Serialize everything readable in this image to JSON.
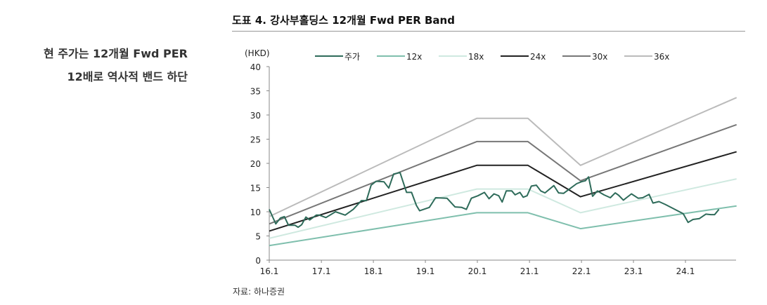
{
  "side_note": {
    "line1": "현 주가는 12개월 Fwd PER",
    "line2": "12배로 역사적 밴드 하단"
  },
  "source": "자료: 하나증권",
  "chart_data": {
    "type": "line",
    "title": "도표 4. 강사부홀딩스 12개월 Fwd PER Band",
    "ylabel": "(HKD)",
    "ylim": [
      0,
      40
    ],
    "yticks": [
      "0",
      "5",
      "10",
      "15",
      "20",
      "25",
      "30",
      "35",
      "40"
    ],
    "xticks": [
      {
        "label": "16.1",
        "date": "2016-01-01"
      },
      {
        "label": "17.1",
        "date": "2017-01-01"
      },
      {
        "label": "18.1",
        "date": "2018-01-01"
      },
      {
        "label": "19.1",
        "date": "2019-01-01"
      },
      {
        "label": "20.1",
        "date": "2020-01-01"
      },
      {
        "label": "21.1",
        "date": "2021-01-01"
      },
      {
        "label": "22.1",
        "date": "2022-01-01"
      },
      {
        "label": "23.1",
        "date": "2023-01-01"
      },
      {
        "label": "24.1",
        "date": "2024-01-01"
      }
    ],
    "legend": "top",
    "grid": false,
    "series": [
      {
        "name": "주가",
        "color": "#2e6b5a",
        "width": 2,
        "points": [
          [
            "2016-01-01",
            10.5
          ],
          [
            "2016-02-16",
            7.5
          ],
          [
            "2016-03-19",
            8.7
          ],
          [
            "2016-04-16",
            9.0
          ],
          [
            "2016-05-15",
            7.2
          ],
          [
            "2016-06-30",
            7.2
          ],
          [
            "2016-07-22",
            6.8
          ],
          [
            "2016-08-15",
            7.3
          ],
          [
            "2016-09-14",
            8.9
          ],
          [
            "2016-10-11",
            8.3
          ],
          [
            "2016-11-26",
            9.3
          ],
          [
            "2016-12-18",
            9.3
          ],
          [
            "2017-02-02",
            8.8
          ],
          [
            "2017-04-10",
            10.0
          ],
          [
            "2017-06-17",
            9.3
          ],
          [
            "2017-08-13",
            10.5
          ],
          [
            "2017-10-09",
            12.3
          ],
          [
            "2017-11-13",
            12.3
          ],
          [
            "2017-12-16",
            15.5
          ],
          [
            "2018-01-20",
            16.3
          ],
          [
            "2018-03-16",
            16.2
          ],
          [
            "2018-04-19",
            14.9
          ],
          [
            "2018-05-23",
            17.8
          ],
          [
            "2018-07-07",
            18.1
          ],
          [
            "2018-08-22",
            14.0
          ],
          [
            "2018-09-26",
            14.0
          ],
          [
            "2018-10-30",
            11.3
          ],
          [
            "2018-11-22",
            10.2
          ],
          [
            "2019-01-29",
            10.9
          ],
          [
            "2019-03-14",
            12.9
          ],
          [
            "2019-06-02",
            12.8
          ],
          [
            "2019-07-28",
            11.0
          ],
          [
            "2019-09-13",
            10.9
          ],
          [
            "2019-10-16",
            10.5
          ],
          [
            "2019-11-20",
            12.8
          ],
          [
            "2020-01-05",
            13.3
          ],
          [
            "2020-02-20",
            14.0
          ],
          [
            "2020-03-23",
            12.7
          ],
          [
            "2020-04-27",
            13.7
          ],
          [
            "2020-05-30",
            13.3
          ],
          [
            "2020-06-23",
            12.0
          ],
          [
            "2020-07-22",
            14.3
          ],
          [
            "2020-08-30",
            14.3
          ],
          [
            "2020-09-22",
            13.5
          ],
          [
            "2020-10-26",
            14.0
          ],
          [
            "2020-11-18",
            13.0
          ],
          [
            "2020-12-15",
            13.3
          ],
          [
            "2021-01-14",
            15.3
          ],
          [
            "2021-02-18",
            15.5
          ],
          [
            "2021-03-21",
            14.3
          ],
          [
            "2021-04-20",
            13.9
          ],
          [
            "2021-06-21",
            15.4
          ],
          [
            "2021-07-24",
            13.9
          ],
          [
            "2021-08-28",
            13.8
          ],
          [
            "2021-10-13",
            14.8
          ],
          [
            "2021-11-28",
            15.8
          ],
          [
            "2022-01-01",
            16.2
          ],
          [
            "2022-01-28",
            16.4
          ],
          [
            "2022-02-20",
            17.2
          ],
          [
            "2022-03-20",
            13.2
          ],
          [
            "2022-04-23",
            14.3
          ],
          [
            "2022-06-08",
            13.5
          ],
          [
            "2022-07-23",
            12.9
          ],
          [
            "2022-08-26",
            13.9
          ],
          [
            "2022-09-19",
            13.4
          ],
          [
            "2022-10-22",
            12.4
          ],
          [
            "2022-12-18",
            13.7
          ],
          [
            "2023-02-03",
            12.8
          ],
          [
            "2023-03-07",
            12.9
          ],
          [
            "2023-04-21",
            13.6
          ],
          [
            "2023-05-18",
            11.8
          ],
          [
            "2023-06-29",
            12.1
          ],
          [
            "2023-08-13",
            11.5
          ],
          [
            "2023-12-16",
            9.6
          ],
          [
            "2024-01-20",
            7.8
          ],
          [
            "2024-02-23",
            8.4
          ],
          [
            "2024-04-08",
            8.6
          ],
          [
            "2024-05-23",
            9.5
          ],
          [
            "2024-06-27",
            9.4
          ],
          [
            "2024-07-24",
            9.4
          ],
          [
            "2024-08-23",
            10.5
          ]
        ]
      },
      {
        "name": "12x",
        "color": "#7fbfad",
        "width": 2,
        "points": [
          [
            "2016-01-01",
            3.0
          ],
          [
            "2019-12-28",
            9.8
          ],
          [
            "2020-12-21",
            9.8
          ],
          [
            "2021-12-25",
            6.5
          ],
          [
            "2024-12-25",
            11.2
          ]
        ]
      },
      {
        "name": "18x",
        "color": "#cfe9e0",
        "width": 2,
        "points": [
          [
            "2016-01-01",
            4.5
          ],
          [
            "2019-12-28",
            14.7
          ],
          [
            "2020-12-21",
            14.7
          ],
          [
            "2021-12-25",
            9.8
          ],
          [
            "2024-12-25",
            16.8
          ]
        ]
      },
      {
        "name": "24x",
        "color": "#222222",
        "width": 2,
        "points": [
          [
            "2016-01-01",
            6.0
          ],
          [
            "2019-12-28",
            19.6
          ],
          [
            "2020-12-21",
            19.6
          ],
          [
            "2021-12-25",
            13.1
          ],
          [
            "2024-12-25",
            22.4
          ]
        ]
      },
      {
        "name": "30x",
        "color": "#777777",
        "width": 2,
        "points": [
          [
            "2016-01-01",
            7.5
          ],
          [
            "2019-12-28",
            24.5
          ],
          [
            "2020-12-21",
            24.5
          ],
          [
            "2021-12-25",
            16.4
          ],
          [
            "2024-12-25",
            28.0
          ]
        ]
      },
      {
        "name": "36x",
        "color": "#bbbbbb",
        "width": 2,
        "points": [
          [
            "2016-01-01",
            9.0
          ],
          [
            "2019-12-28",
            29.3
          ],
          [
            "2020-12-21",
            29.3
          ],
          [
            "2021-12-25",
            19.6
          ],
          [
            "2024-12-25",
            33.6
          ]
        ]
      }
    ]
  }
}
